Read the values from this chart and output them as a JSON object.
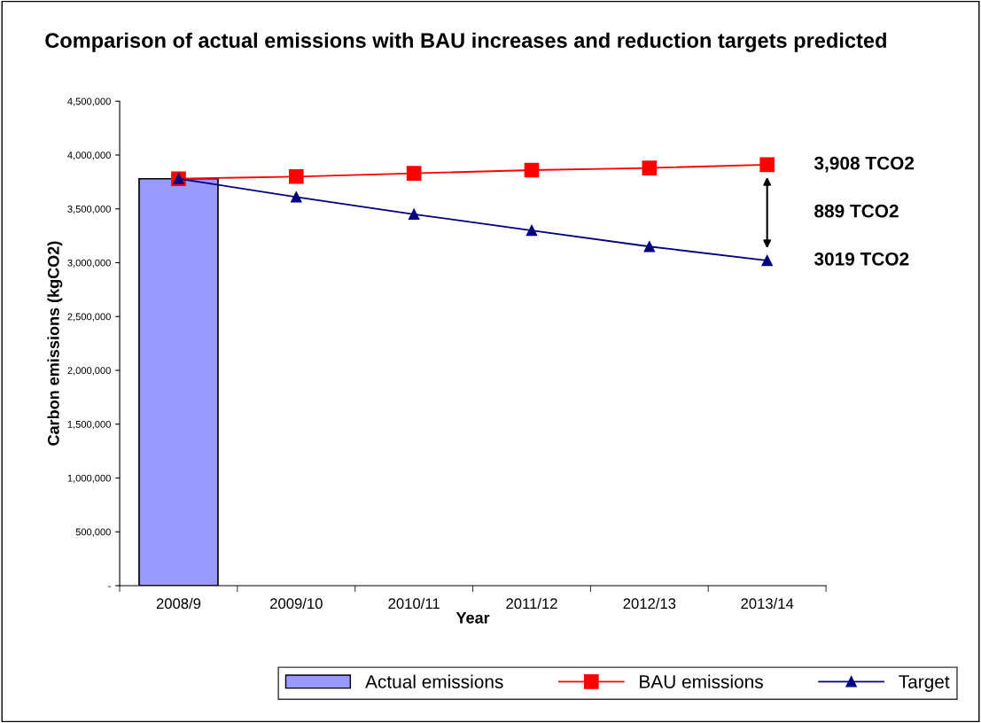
{
  "chart_data": {
    "type": "line",
    "title": "Comparison of actual emissions with BAU increases and reduction targets predicted",
    "xlabel": "Year",
    "ylabel": "Carbon emissions (kgCO2)",
    "categories": [
      "2008/9",
      "2009/10",
      "2010/11",
      "2011/12",
      "2012/13",
      "2013/14"
    ],
    "series": [
      {
        "name": "Actual emissions",
        "type": "bar",
        "color": "#9999ff",
        "values": [
          3780000,
          null,
          null,
          null,
          null,
          null
        ]
      },
      {
        "name": "BAU emissions",
        "color": "#ff0000",
        "marker": "square",
        "values": [
          3780000,
          3800000,
          3830000,
          3860000,
          3880000,
          3910000
        ]
      },
      {
        "name": "Target",
        "color": "#000080",
        "marker": "triangle",
        "values": [
          3780000,
          3610000,
          3450000,
          3300000,
          3150000,
          3020000
        ]
      }
    ],
    "ylim": [
      0,
      4500000
    ],
    "yticks": [
      {
        "value": 0,
        "label": "-"
      },
      {
        "value": 500000,
        "label": "500,000"
      },
      {
        "value": 1000000,
        "label": "1,000,000"
      },
      {
        "value": 1500000,
        "label": "1,500,000"
      },
      {
        "value": 2000000,
        "label": "2,000,000"
      },
      {
        "value": 2500000,
        "label": "2,500,000"
      },
      {
        "value": 3000000,
        "label": "3,000,000"
      },
      {
        "value": 3500000,
        "label": "3,500,000"
      },
      {
        "value": 4000000,
        "label": "4,000,000"
      },
      {
        "value": 4500000,
        "label": "4,500,000"
      }
    ],
    "annotations": [
      "3,908 TCO2",
      "889 TCO2",
      "3019 TCO2"
    ],
    "grid": false,
    "legend": "bottom"
  }
}
